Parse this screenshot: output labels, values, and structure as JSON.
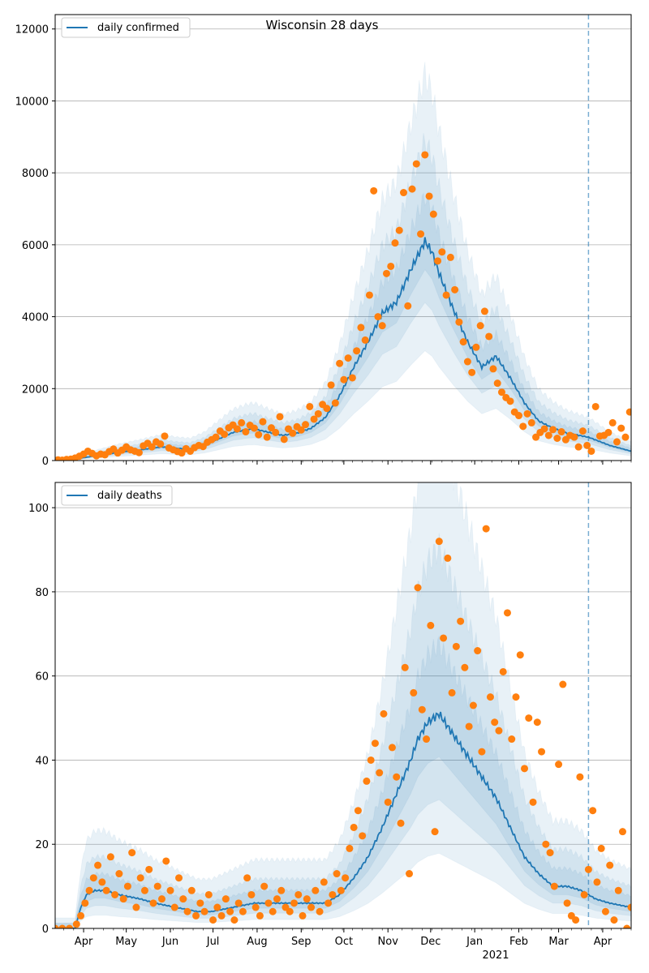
{
  "figure": {
    "title": "Wisconsin 28 days",
    "colors": {
      "line": "#1f77b4",
      "points": "#ff7f0e",
      "band": "#1f77b4",
      "grid": "#b0b0b0",
      "vline": "#1f77b4"
    },
    "month_labels": [
      "Apr",
      "May",
      "Jun",
      "Jul",
      "Aug",
      "Sep",
      "Oct",
      "Nov",
      "Dec",
      "Jan",
      "Feb",
      "Mar",
      "Apr"
    ],
    "month_days": [
      20,
      50,
      81,
      111,
      142,
      173,
      203,
      234,
      264,
      295,
      326,
      354,
      385
    ],
    "year_label": "2021",
    "year_label_day": 295,
    "xlim_days": [
      0,
      405
    ],
    "vline_day": 375
  },
  "chart_data": [
    {
      "type": "line",
      "legend": "daily confirmed",
      "legend_loc": "upper-left",
      "grid": "horizontal",
      "ylim": [
        0,
        12400
      ],
      "yticks": [
        0,
        2000,
        4000,
        6000,
        8000,
        10000,
        12000
      ],
      "line_knots": [
        [
          0,
          0
        ],
        [
          10,
          10
        ],
        [
          20,
          80
        ],
        [
          30,
          140
        ],
        [
          45,
          230
        ],
        [
          60,
          300
        ],
        [
          75,
          380
        ],
        [
          85,
          340
        ],
        [
          95,
          320
        ],
        [
          105,
          420
        ],
        [
          115,
          600
        ],
        [
          125,
          780
        ],
        [
          135,
          860
        ],
        [
          140,
          880
        ],
        [
          145,
          830
        ],
        [
          160,
          700
        ],
        [
          170,
          760
        ],
        [
          180,
          900
        ],
        [
          190,
          1200
        ],
        [
          200,
          1800
        ],
        [
          210,
          2600
        ],
        [
          220,
          3300
        ],
        [
          230,
          4100
        ],
        [
          240,
          4400
        ],
        [
          250,
          5300
        ],
        [
          260,
          6100
        ],
        [
          265,
          5800
        ],
        [
          270,
          5200
        ],
        [
          280,
          4200
        ],
        [
          290,
          3300
        ],
        [
          300,
          2600
        ],
        [
          310,
          2900
        ],
        [
          320,
          2300
        ],
        [
          330,
          1600
        ],
        [
          340,
          1100
        ],
        [
          350,
          900
        ],
        [
          360,
          760
        ],
        [
          375,
          650
        ],
        [
          390,
          420
        ],
        [
          405,
          260
        ]
      ],
      "band_ratios": [
        0.5,
        0.72,
        0.87,
        1.2,
        1.45,
        1.75
      ],
      "points": [
        [
          2,
          20
        ],
        [
          5,
          10
        ],
        [
          8,
          30
        ],
        [
          11,
          40
        ],
        [
          14,
          70
        ],
        [
          17,
          120
        ],
        [
          20,
          180
        ],
        [
          23,
          260
        ],
        [
          26,
          200
        ],
        [
          29,
          130
        ],
        [
          32,
          180
        ],
        [
          35,
          160
        ],
        [
          38,
          250
        ],
        [
          41,
          320
        ],
        [
          44,
          210
        ],
        [
          47,
          290
        ],
        [
          50,
          380
        ],
        [
          53,
          300
        ],
        [
          56,
          260
        ],
        [
          59,
          220
        ],
        [
          62,
          410
        ],
        [
          65,
          480
        ],
        [
          68,
          380
        ],
        [
          71,
          520
        ],
        [
          74,
          460
        ],
        [
          77,
          680
        ],
        [
          80,
          350
        ],
        [
          83,
          300
        ],
        [
          86,
          250
        ],
        [
          89,
          210
        ],
        [
          92,
          330
        ],
        [
          95,
          260
        ],
        [
          98,
          360
        ],
        [
          101,
          420
        ],
        [
          104,
          390
        ],
        [
          107,
          510
        ],
        [
          110,
          580
        ],
        [
          113,
          650
        ],
        [
          116,
          820
        ],
        [
          119,
          730
        ],
        [
          122,
          910
        ],
        [
          125,
          990
        ],
        [
          128,
          880
        ],
        [
          131,
          1050
        ],
        [
          134,
          800
        ],
        [
          137,
          980
        ],
        [
          140,
          900
        ],
        [
          143,
          720
        ],
        [
          146,
          1080
        ],
        [
          149,
          650
        ],
        [
          152,
          910
        ],
        [
          155,
          780
        ],
        [
          158,
          1220
        ],
        [
          161,
          590
        ],
        [
          164,
          880
        ],
        [
          167,
          760
        ],
        [
          170,
          940
        ],
        [
          173,
          850
        ],
        [
          176,
          1000
        ],
        [
          179,
          1500
        ],
        [
          182,
          1150
        ],
        [
          185,
          1300
        ],
        [
          188,
          1560
        ],
        [
          191,
          1450
        ],
        [
          194,
          2100
        ],
        [
          197,
          1600
        ],
        [
          200,
          2700
        ],
        [
          203,
          2250
        ],
        [
          206,
          2850
        ],
        [
          209,
          2300
        ],
        [
          212,
          3050
        ],
        [
          215,
          3700
        ],
        [
          218,
          3350
        ],
        [
          221,
          4600
        ],
        [
          224,
          7500
        ],
        [
          227,
          4000
        ],
        [
          230,
          3750
        ],
        [
          233,
          5200
        ],
        [
          236,
          5400
        ],
        [
          239,
          6050
        ],
        [
          242,
          6400
        ],
        [
          245,
          7450
        ],
        [
          248,
          4300
        ],
        [
          251,
          7550
        ],
        [
          254,
          8250
        ],
        [
          257,
          6300
        ],
        [
          260,
          8500
        ],
        [
          263,
          7350
        ],
        [
          266,
          6850
        ],
        [
          269,
          5550
        ],
        [
          272,
          5800
        ],
        [
          275,
          4600
        ],
        [
          278,
          5650
        ],
        [
          281,
          4750
        ],
        [
          284,
          3850
        ],
        [
          287,
          3300
        ],
        [
          290,
          2750
        ],
        [
          293,
          2450
        ],
        [
          296,
          3150
        ],
        [
          299,
          3750
        ],
        [
          302,
          4150
        ],
        [
          305,
          3450
        ],
        [
          308,
          2550
        ],
        [
          311,
          2150
        ],
        [
          314,
          1900
        ],
        [
          317,
          1750
        ],
        [
          320,
          1650
        ],
        [
          323,
          1350
        ],
        [
          326,
          1250
        ],
        [
          329,
          950
        ],
        [
          332,
          1300
        ],
        [
          335,
          1050
        ],
        [
          338,
          650
        ],
        [
          341,
          780
        ],
        [
          344,
          880
        ],
        [
          347,
          700
        ],
        [
          350,
          860
        ],
        [
          353,
          620
        ],
        [
          356,
          800
        ],
        [
          359,
          580
        ],
        [
          362,
          700
        ],
        [
          365,
          650
        ],
        [
          368,
          380
        ],
        [
          371,
          820
        ],
        [
          374,
          420
        ],
        [
          377,
          260
        ],
        [
          380,
          1500
        ],
        [
          383,
          680
        ],
        [
          386,
          700
        ],
        [
          389,
          780
        ],
        [
          392,
          1050
        ],
        [
          395,
          520
        ],
        [
          398,
          900
        ],
        [
          401,
          650
        ],
        [
          404,
          1350
        ]
      ]
    },
    {
      "type": "line",
      "legend": "daily deaths",
      "legend_loc": "upper-left",
      "grid": "horizontal",
      "ylim": [
        0,
        106
      ],
      "yticks": [
        0,
        20,
        40,
        60,
        80,
        100
      ],
      "line_knots": [
        [
          0,
          0
        ],
        [
          14,
          0
        ],
        [
          18,
          5
        ],
        [
          22,
          8
        ],
        [
          28,
          9
        ],
        [
          35,
          9
        ],
        [
          45,
          8
        ],
        [
          60,
          7
        ],
        [
          70,
          6
        ],
        [
          85,
          5
        ],
        [
          100,
          4
        ],
        [
          110,
          4
        ],
        [
          125,
          5
        ],
        [
          140,
          6
        ],
        [
          160,
          6
        ],
        [
          175,
          6
        ],
        [
          190,
          6
        ],
        [
          200,
          8
        ],
        [
          210,
          12
        ],
        [
          220,
          17
        ],
        [
          230,
          24
        ],
        [
          240,
          32
        ],
        [
          250,
          40
        ],
        [
          255,
          45
        ],
        [
          262,
          49
        ],
        [
          270,
          51
        ],
        [
          278,
          47
        ],
        [
          290,
          41
        ],
        [
          300,
          36
        ],
        [
          310,
          31
        ],
        [
          320,
          24
        ],
        [
          330,
          17
        ],
        [
          340,
          13
        ],
        [
          350,
          10
        ],
        [
          360,
          10
        ],
        [
          370,
          9
        ],
        [
          380,
          7
        ],
        [
          390,
          6
        ],
        [
          405,
          5
        ]
      ],
      "band_ratios": [
        0.35,
        0.6,
        0.8,
        1.3,
        1.75,
        2.3
      ],
      "points": [
        [
          0,
          0
        ],
        [
          5,
          0
        ],
        [
          10,
          0
        ],
        [
          15,
          1
        ],
        [
          18,
          3
        ],
        [
          21,
          6
        ],
        [
          24,
          9
        ],
        [
          27,
          12
        ],
        [
          30,
          15
        ],
        [
          33,
          11
        ],
        [
          36,
          9
        ],
        [
          39,
          17
        ],
        [
          42,
          8
        ],
        [
          45,
          13
        ],
        [
          48,
          7
        ],
        [
          51,
          10
        ],
        [
          54,
          18
        ],
        [
          57,
          5
        ],
        [
          60,
          12
        ],
        [
          63,
          9
        ],
        [
          66,
          14
        ],
        [
          69,
          6
        ],
        [
          72,
          10
        ],
        [
          75,
          7
        ],
        [
          78,
          16
        ],
        [
          81,
          9
        ],
        [
          84,
          5
        ],
        [
          87,
          12
        ],
        [
          90,
          7
        ],
        [
          93,
          4
        ],
        [
          96,
          9
        ],
        [
          99,
          3
        ],
        [
          102,
          6
        ],
        [
          105,
          4
        ],
        [
          108,
          8
        ],
        [
          111,
          2
        ],
        [
          114,
          5
        ],
        [
          117,
          3
        ],
        [
          120,
          7
        ],
        [
          123,
          4
        ],
        [
          126,
          2
        ],
        [
          129,
          6
        ],
        [
          132,
          4
        ],
        [
          135,
          12
        ],
        [
          138,
          8
        ],
        [
          141,
          5
        ],
        [
          144,
          3
        ],
        [
          147,
          10
        ],
        [
          150,
          6
        ],
        [
          153,
          4
        ],
        [
          156,
          7
        ],
        [
          159,
          9
        ],
        [
          162,
          5
        ],
        [
          165,
          4
        ],
        [
          168,
          6
        ],
        [
          171,
          8
        ],
        [
          174,
          3
        ],
        [
          177,
          7
        ],
        [
          180,
          5
        ],
        [
          183,
          9
        ],
        [
          186,
          4
        ],
        [
          189,
          11
        ],
        [
          192,
          6
        ],
        [
          195,
          8
        ],
        [
          198,
          13
        ],
        [
          201,
          9
        ],
        [
          204,
          12
        ],
        [
          207,
          19
        ],
        [
          210,
          24
        ],
        [
          213,
          28
        ],
        [
          216,
          22
        ],
        [
          219,
          35
        ],
        [
          222,
          40
        ],
        [
          225,
          44
        ],
        [
          228,
          37
        ],
        [
          231,
          51
        ],
        [
          234,
          30
        ],
        [
          237,
          43
        ],
        [
          240,
          36
        ],
        [
          243,
          25
        ],
        [
          246,
          62
        ],
        [
          249,
          13
        ],
        [
          252,
          56
        ],
        [
          255,
          81
        ],
        [
          258,
          52
        ],
        [
          261,
          45
        ],
        [
          264,
          72
        ],
        [
          267,
          23
        ],
        [
          270,
          92
        ],
        [
          273,
          69
        ],
        [
          276,
          88
        ],
        [
          279,
          56
        ],
        [
          282,
          67
        ],
        [
          285,
          73
        ],
        [
          288,
          62
        ],
        [
          291,
          48
        ],
        [
          294,
          53
        ],
        [
          297,
          66
        ],
        [
          300,
          42
        ],
        [
          303,
          95
        ],
        [
          306,
          55
        ],
        [
          309,
          49
        ],
        [
          312,
          47
        ],
        [
          315,
          61
        ],
        [
          318,
          75
        ],
        [
          321,
          45
        ],
        [
          324,
          55
        ],
        [
          327,
          65
        ],
        [
          330,
          38
        ],
        [
          333,
          50
        ],
        [
          336,
          30
        ],
        [
          339,
          49
        ],
        [
          342,
          42
        ],
        [
          345,
          20
        ],
        [
          348,
          18
        ],
        [
          351,
          10
        ],
        [
          354,
          39
        ],
        [
          357,
          58
        ],
        [
          360,
          6
        ],
        [
          363,
          3
        ],
        [
          366,
          2
        ],
        [
          369,
          36
        ],
        [
          372,
          8
        ],
        [
          375,
          14
        ],
        [
          378,
          28
        ],
        [
          381,
          11
        ],
        [
          384,
          19
        ],
        [
          387,
          4
        ],
        [
          390,
          15
        ],
        [
          393,
          2
        ],
        [
          396,
          9
        ],
        [
          399,
          23
        ],
        [
          402,
          0
        ],
        [
          405,
          5
        ]
      ]
    }
  ]
}
